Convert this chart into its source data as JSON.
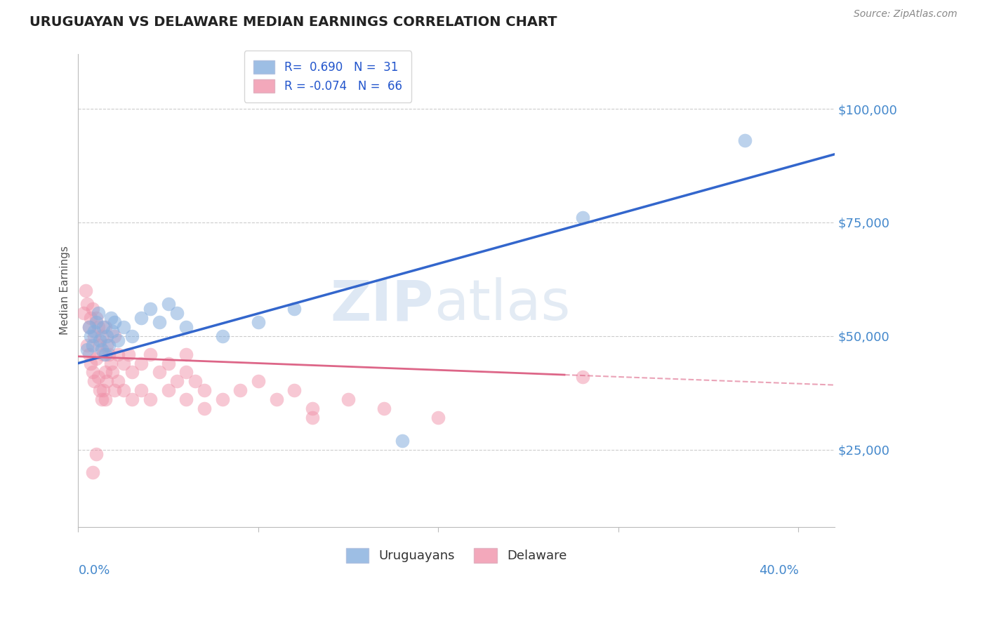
{
  "title": "URUGUAYAN VS DELAWARE MEDIAN EARNINGS CORRELATION CHART",
  "source": "Source: ZipAtlas.com",
  "ylabel": "Median Earnings",
  "ytick_labels": [
    "$25,000",
    "$50,000",
    "$75,000",
    "$100,000"
  ],
  "ytick_values": [
    25000,
    50000,
    75000,
    100000
  ],
  "ylim": [
    8000,
    112000
  ],
  "xlim": [
    0.0,
    0.42
  ],
  "legend_uruguayan": "Uruguayans",
  "legend_delaware": "Delaware",
  "corr_blue_R": "0.690",
  "corr_blue_N": "31",
  "corr_pink_R": "-0.074",
  "corr_pink_N": "66",
  "blue_color": "#85aede",
  "pink_color": "#f093aa",
  "blue_line_color": "#3366cc",
  "pink_line_color": "#dd6688",
  "watermark_zip": "ZIP",
  "watermark_atlas": "atlas",
  "background_color": "#ffffff",
  "grid_color": "#cccccc",
  "uruguayan_points": [
    [
      0.005,
      47000
    ],
    [
      0.006,
      52000
    ],
    [
      0.007,
      50000
    ],
    [
      0.008,
      48000
    ],
    [
      0.009,
      51000
    ],
    [
      0.01,
      53000
    ],
    [
      0.011,
      55000
    ],
    [
      0.012,
      49000
    ],
    [
      0.013,
      47000
    ],
    [
      0.014,
      52000
    ],
    [
      0.015,
      46000
    ],
    [
      0.016,
      50000
    ],
    [
      0.017,
      48000
    ],
    [
      0.018,
      54000
    ],
    [
      0.019,
      51000
    ],
    [
      0.02,
      53000
    ],
    [
      0.022,
      49000
    ],
    [
      0.025,
      52000
    ],
    [
      0.03,
      50000
    ],
    [
      0.035,
      54000
    ],
    [
      0.04,
      56000
    ],
    [
      0.045,
      53000
    ],
    [
      0.05,
      57000
    ],
    [
      0.055,
      55000
    ],
    [
      0.06,
      52000
    ],
    [
      0.08,
      50000
    ],
    [
      0.1,
      53000
    ],
    [
      0.12,
      56000
    ],
    [
      0.28,
      76000
    ],
    [
      0.37,
      93000
    ],
    [
      0.18,
      27000
    ]
  ],
  "delaware_points": [
    [
      0.003,
      55000
    ],
    [
      0.004,
      60000
    ],
    [
      0.005,
      57000
    ],
    [
      0.005,
      48000
    ],
    [
      0.006,
      52000
    ],
    [
      0.006,
      46000
    ],
    [
      0.007,
      54000
    ],
    [
      0.007,
      44000
    ],
    [
      0.008,
      56000
    ],
    [
      0.008,
      42000
    ],
    [
      0.009,
      50000
    ],
    [
      0.009,
      40000
    ],
    [
      0.01,
      54000
    ],
    [
      0.01,
      45000
    ],
    [
      0.011,
      52000
    ],
    [
      0.011,
      41000
    ],
    [
      0.012,
      48000
    ],
    [
      0.012,
      38000
    ],
    [
      0.013,
      50000
    ],
    [
      0.013,
      36000
    ],
    [
      0.014,
      46000
    ],
    [
      0.014,
      38000
    ],
    [
      0.015,
      52000
    ],
    [
      0.015,
      42000
    ],
    [
      0.015,
      36000
    ],
    [
      0.016,
      48000
    ],
    [
      0.016,
      40000
    ],
    [
      0.017,
      46000
    ],
    [
      0.018,
      44000
    ],
    [
      0.019,
      42000
    ],
    [
      0.02,
      50000
    ],
    [
      0.02,
      38000
    ],
    [
      0.022,
      46000
    ],
    [
      0.022,
      40000
    ],
    [
      0.025,
      44000
    ],
    [
      0.025,
      38000
    ],
    [
      0.028,
      46000
    ],
    [
      0.03,
      42000
    ],
    [
      0.03,
      36000
    ],
    [
      0.035,
      44000
    ],
    [
      0.035,
      38000
    ],
    [
      0.04,
      46000
    ],
    [
      0.04,
      36000
    ],
    [
      0.045,
      42000
    ],
    [
      0.05,
      44000
    ],
    [
      0.05,
      38000
    ],
    [
      0.055,
      40000
    ],
    [
      0.06,
      42000
    ],
    [
      0.06,
      36000
    ],
    [
      0.065,
      40000
    ],
    [
      0.07,
      38000
    ],
    [
      0.07,
      34000
    ],
    [
      0.08,
      36000
    ],
    [
      0.09,
      38000
    ],
    [
      0.1,
      40000
    ],
    [
      0.11,
      36000
    ],
    [
      0.12,
      38000
    ],
    [
      0.13,
      34000
    ],
    [
      0.15,
      36000
    ],
    [
      0.17,
      34000
    ],
    [
      0.2,
      32000
    ],
    [
      0.01,
      24000
    ],
    [
      0.008,
      20000
    ],
    [
      0.06,
      46000
    ],
    [
      0.28,
      41000
    ],
    [
      0.13,
      32000
    ]
  ]
}
